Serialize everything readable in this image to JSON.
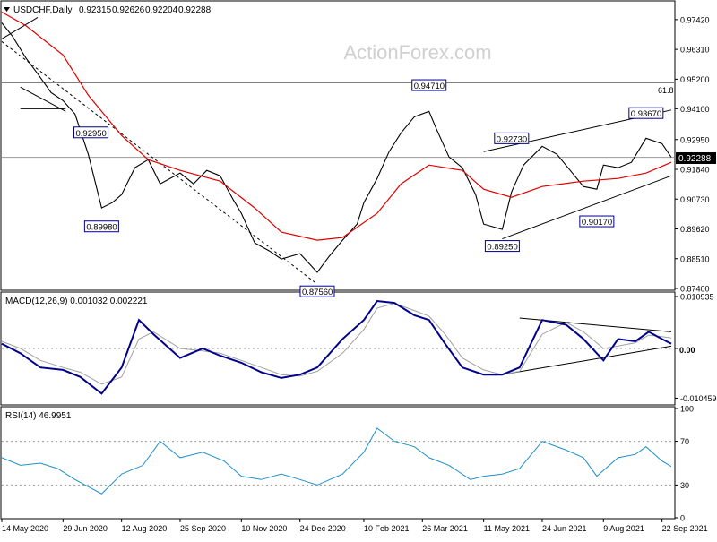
{
  "colors": {
    "price": "#000000",
    "ma": "#e00000",
    "macd": "#00008b",
    "signal": "#a0a0a0",
    "rsi": "#1e90c8",
    "frame": "#000000",
    "box_border": "#00008b",
    "label_dark": "#000000"
  },
  "chart_data": [
    {
      "type": "line",
      "title": "USDCHF,Daily",
      "ohlc": [
        "0.92315",
        "0.92626",
        "0.92204",
        "0.92288"
      ],
      "watermark": "ActionForex.com",
      "y_range": [
        0.874,
        0.9795
      ],
      "y_ticks": [
        "0.97420",
        "0.96310",
        "0.95200",
        "0.94100",
        "0.92950",
        "0.91840",
        "0.90730",
        "0.89620",
        "0.88510",
        "0.87400"
      ],
      "current_price": "0.92288",
      "fib_label": "61.8",
      "fib_level": 0.9508,
      "annotations": [
        {
          "label": "0.92950",
          "date": "2020-07-20",
          "value": 0.9295
        },
        {
          "label": "0.89980",
          "date": "2020-07-28",
          "value": 0.8998
        },
        {
          "label": "0.87560",
          "date": "2021-01-06",
          "value": 0.8756
        },
        {
          "label": "0.94710",
          "date": "2021-03-31",
          "value": 0.9471
        },
        {
          "label": "0.92730",
          "date": "2021-06-01",
          "value": 0.9273
        },
        {
          "label": "0.89250",
          "date": "2021-05-25",
          "value": 0.8925
        },
        {
          "label": "0.90170",
          "date": "2021-08-04",
          "value": 0.9017
        },
        {
          "label": "0.93670",
          "date": "2021-09-10",
          "value": 0.9367
        }
      ],
      "series": [
        {
          "name": "USDCHF",
          "x": [
            "2020-05-14",
            "2020-05-22",
            "2020-06-01",
            "2020-06-10",
            "2020-06-20",
            "2020-06-29",
            "2020-07-08",
            "2020-07-18",
            "2020-07-28",
            "2020-08-05",
            "2020-08-12",
            "2020-08-22",
            "2020-09-01",
            "2020-09-10",
            "2020-09-25",
            "2020-10-05",
            "2020-10-15",
            "2020-10-25",
            "2020-11-04",
            "2020-11-10",
            "2020-11-20",
            "2020-12-01",
            "2020-12-10",
            "2020-12-24",
            "2021-01-06",
            "2021-01-15",
            "2021-01-25",
            "2021-02-05",
            "2021-02-10",
            "2021-02-20",
            "2021-03-01",
            "2021-03-10",
            "2021-03-20",
            "2021-03-31",
            "2021-04-05",
            "2021-04-15",
            "2021-04-25",
            "2021-05-05",
            "2021-05-11",
            "2021-05-25",
            "2021-06-01",
            "2021-06-10",
            "2021-06-24",
            "2021-07-05",
            "2021-07-15",
            "2021-07-25",
            "2021-08-04",
            "2021-08-09",
            "2021-08-20",
            "2021-08-30",
            "2021-09-10",
            "2021-09-22",
            "2021-09-29"
          ],
          "values": [
            0.973,
            0.968,
            0.96,
            0.954,
            0.947,
            0.944,
            0.939,
            0.924,
            0.904,
            0.906,
            0.909,
            0.919,
            0.922,
            0.913,
            0.917,
            0.913,
            0.918,
            0.916,
            0.907,
            0.902,
            0.891,
            0.888,
            0.885,
            0.887,
            0.88,
            0.886,
            0.892,
            0.898,
            0.906,
            0.915,
            0.925,
            0.932,
            0.938,
            0.94,
            0.934,
            0.923,
            0.919,
            0.909,
            0.898,
            0.896,
            0.91,
            0.92,
            0.927,
            0.924,
            0.918,
            0.912,
            0.911,
            0.92,
            0.919,
            0.921,
            0.93,
            0.928,
            0.9229
          ]
        },
        {
          "name": "MA",
          "x": [
            "2020-05-14",
            "2020-06-01",
            "2020-06-29",
            "2020-07-18",
            "2020-08-12",
            "2020-09-01",
            "2020-09-25",
            "2020-10-25",
            "2020-11-20",
            "2020-12-10",
            "2021-01-06",
            "2021-01-25",
            "2021-02-20",
            "2021-03-10",
            "2021-03-31",
            "2021-04-25",
            "2021-05-11",
            "2021-06-01",
            "2021-06-24",
            "2021-07-25",
            "2021-08-20",
            "2021-09-10",
            "2021-09-29"
          ],
          "values": [
            0.977,
            0.972,
            0.961,
            0.946,
            0.931,
            0.922,
            0.918,
            0.914,
            0.904,
            0.895,
            0.892,
            0.893,
            0.902,
            0.913,
            0.92,
            0.918,
            0.911,
            0.908,
            0.912,
            0.914,
            0.915,
            0.917,
            0.921
          ]
        }
      ],
      "trendlines": [
        {
          "from": [
            "2020-05-14",
            0.967
          ],
          "to": [
            "2020-06-10",
            0.975
          ]
        },
        {
          "from": [
            "2020-05-14",
            0.966
          ],
          "to": [
            "2021-01-06",
            0.8756
          ],
          "dashed": true
        },
        {
          "from": [
            "2020-05-28",
            0.941
          ],
          "to": [
            "2020-07-01",
            0.941
          ]
        },
        {
          "from": [
            "2020-05-28",
            0.949
          ],
          "to": [
            "2020-07-01",
            0.94
          ]
        },
        {
          "from": [
            "2021-05-11",
            0.925
          ],
          "to": [
            "2021-09-29",
            0.9405
          ]
        },
        {
          "from": [
            "2021-05-25",
            0.8925
          ],
          "to": [
            "2021-09-29",
            0.916
          ]
        }
      ]
    },
    {
      "type": "line",
      "title": "MACD(12,26,9) 0.001032 0.002221",
      "y_range": [
        -0.0115,
        0.0115
      ],
      "y_ticks": [
        "0.010935",
        "0.00",
        "-0.010459"
      ],
      "zero_label": "0.00",
      "x": [
        "2020-05-14",
        "2020-05-28",
        "2020-06-12",
        "2020-06-29",
        "2020-07-12",
        "2020-07-28",
        "2020-08-12",
        "2020-08-25",
        "2020-09-05",
        "2020-09-25",
        "2020-10-12",
        "2020-10-25",
        "2020-11-10",
        "2020-11-25",
        "2020-12-10",
        "2020-12-24",
        "2021-01-06",
        "2021-01-25",
        "2021-02-10",
        "2021-02-20",
        "2021-03-05",
        "2021-03-20",
        "2021-03-31",
        "2021-04-12",
        "2021-04-25",
        "2021-05-11",
        "2021-05-25",
        "2021-06-07",
        "2021-06-24",
        "2021-07-12",
        "2021-07-25",
        "2021-08-09",
        "2021-08-20",
        "2021-09-02",
        "2021-09-12",
        "2021-09-22",
        "2021-09-29"
      ],
      "series": [
        {
          "name": "MACD",
          "values": [
            0.001,
            -0.001,
            -0.004,
            -0.0045,
            -0.006,
            -0.0095,
            -0.004,
            0.006,
            0.003,
            -0.002,
            0.0,
            -0.0015,
            -0.003,
            -0.005,
            -0.0062,
            -0.0055,
            -0.004,
            0.002,
            0.006,
            0.01,
            0.0096,
            0.007,
            0.006,
            0.001,
            -0.004,
            -0.0055,
            -0.0055,
            -0.004,
            0.006,
            0.005,
            0.002,
            -0.0025,
            0.002,
            0.0015,
            0.0035,
            0.002,
            0.001
          ]
        },
        {
          "name": "Signal",
          "values": [
            0.0015,
            0.0,
            -0.0025,
            -0.004,
            -0.005,
            -0.0075,
            -0.006,
            0.002,
            0.0035,
            0.0,
            -0.0005,
            -0.001,
            -0.0025,
            -0.004,
            -0.0055,
            -0.0058,
            -0.0048,
            -0.001,
            0.004,
            0.0085,
            0.0095,
            0.008,
            0.0068,
            0.003,
            -0.002,
            -0.0045,
            -0.0055,
            -0.0048,
            0.003,
            0.0055,
            0.0035,
            0.0,
            0.0005,
            0.0012,
            0.0028,
            0.0025,
            0.0022
          ]
        }
      ],
      "trendlines": [
        {
          "from": [
            "2021-06-07",
            0.0064
          ],
          "to": [
            "2021-09-29",
            0.0035
          ]
        },
        {
          "from": [
            "2021-05-25",
            -0.0055
          ],
          "to": [
            "2021-09-29",
            0.0005
          ]
        }
      ]
    },
    {
      "type": "line",
      "title": "RSI(14) 46.9951",
      "y_range": [
        0,
        100
      ],
      "y_ticks": [
        "100",
        "70",
        "30",
        "0"
      ],
      "levels": [
        70,
        30
      ],
      "x": [
        "2020-05-14",
        "2020-05-28",
        "2020-06-12",
        "2020-06-25",
        "2020-07-08",
        "2020-07-28",
        "2020-08-12",
        "2020-08-28",
        "2020-09-10",
        "2020-09-25",
        "2020-10-12",
        "2020-10-28",
        "2020-11-10",
        "2020-11-25",
        "2020-12-10",
        "2020-12-24",
        "2021-01-06",
        "2021-01-25",
        "2021-02-10",
        "2021-02-20",
        "2021-03-05",
        "2021-03-20",
        "2021-03-31",
        "2021-04-15",
        "2021-05-01",
        "2021-05-11",
        "2021-05-25",
        "2021-06-07",
        "2021-06-24",
        "2021-07-12",
        "2021-07-25",
        "2021-08-04",
        "2021-08-20",
        "2021-09-02",
        "2021-09-10",
        "2021-09-22",
        "2021-09-29"
      ],
      "series": [
        {
          "name": "RSI",
          "values": [
            55,
            48,
            50,
            45,
            35,
            22,
            40,
            48,
            70,
            55,
            60,
            52,
            38,
            35,
            40,
            35,
            30,
            40,
            60,
            82,
            70,
            65,
            55,
            48,
            35,
            38,
            40,
            45,
            70,
            62,
            55,
            38,
            55,
            58,
            65,
            52,
            47
          ]
        }
      ]
    }
  ],
  "x_axis": {
    "labels": [
      {
        "text": "14 May 2020",
        "date": "2020-05-14"
      },
      {
        "text": "29 Jun 2020",
        "date": "2020-06-29"
      },
      {
        "text": "12 Aug 2020",
        "date": "2020-08-12"
      },
      {
        "text": "25 Sep 2020",
        "date": "2020-09-25"
      },
      {
        "text": "10 Nov 2020",
        "date": "2020-11-10"
      },
      {
        "text": "24 Dec 2020",
        "date": "2020-12-24"
      },
      {
        "text": "10 Feb 2021",
        "date": "2021-02-10"
      },
      {
        "text": "26 Mar 2021",
        "date": "2021-03-26"
      },
      {
        "text": "11 May 2021",
        "date": "2021-05-11"
      },
      {
        "text": "24 Jun 2021",
        "date": "2021-06-24"
      },
      {
        "text": "9 Aug 2021",
        "date": "2021-08-09"
      },
      {
        "text": "22 Sep 2021",
        "date": "2021-09-22"
      }
    ]
  }
}
